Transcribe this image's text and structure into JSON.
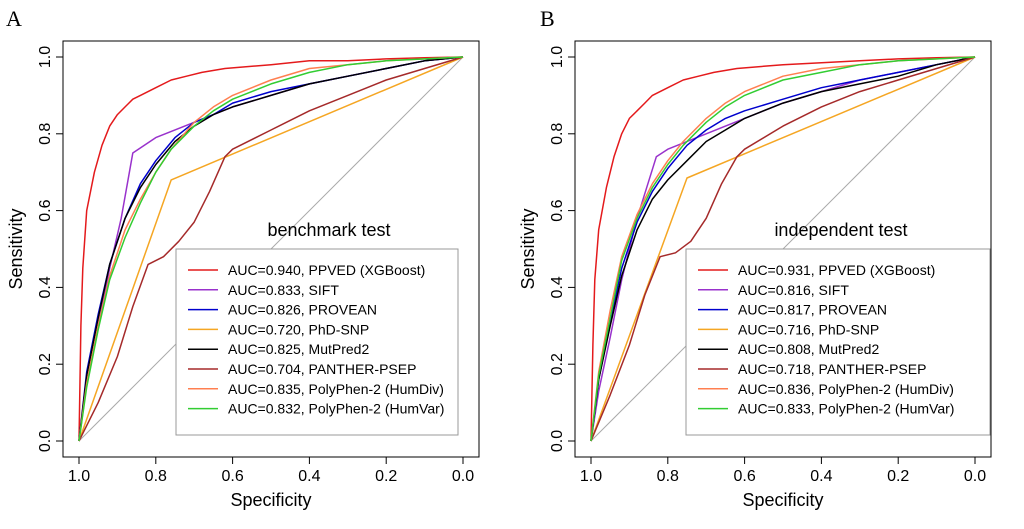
{
  "chart_data": [
    {
      "type": "line",
      "panel_label": "A",
      "annotation": "benchmark test",
      "xlabel": "Specificity",
      "ylabel": "Sensitivity",
      "xlim": [
        1.0,
        0.0
      ],
      "ylim": [
        0.0,
        1.0
      ],
      "x_ticks": [
        "1.0",
        "0.8",
        "0.6",
        "0.4",
        "0.2",
        "0.0"
      ],
      "y_ticks": [
        "0.0",
        "0.2",
        "0.4",
        "0.6",
        "0.8",
        "1.0"
      ],
      "legend_position": "bottom-right",
      "series": [
        {
          "name": "AUC=0.940, PPVED (XGBoost)",
          "color": "#e41a1c",
          "x": [
            1.0,
            0.995,
            0.99,
            0.98,
            0.96,
            0.94,
            0.92,
            0.9,
            0.88,
            0.86,
            0.84,
            0.8,
            0.76,
            0.72,
            0.68,
            0.62,
            0.5,
            0.4,
            0.3,
            0.2,
            0.1,
            0.0
          ],
          "y": [
            0.0,
            0.3,
            0.45,
            0.6,
            0.7,
            0.77,
            0.82,
            0.85,
            0.87,
            0.89,
            0.9,
            0.92,
            0.94,
            0.95,
            0.96,
            0.97,
            0.98,
            0.99,
            0.99,
            0.995,
            0.998,
            1.0
          ]
        },
        {
          "name": "AUC=0.833, SIFT",
          "color": "#9932cc",
          "x": [
            1.0,
            0.98,
            0.95,
            0.92,
            0.89,
            0.86,
            0.8,
            0.7,
            0.6,
            0.5,
            0.4,
            0.3,
            0.2,
            0.1,
            0.0
          ],
          "y": [
            0.0,
            0.15,
            0.3,
            0.45,
            0.58,
            0.75,
            0.79,
            0.83,
            0.87,
            0.9,
            0.93,
            0.95,
            0.97,
            0.99,
            1.0
          ]
        },
        {
          "name": "AUC=0.826, PROVEAN",
          "color": "#0000cd",
          "x": [
            1.0,
            0.98,
            0.95,
            0.92,
            0.88,
            0.84,
            0.8,
            0.75,
            0.7,
            0.65,
            0.6,
            0.5,
            0.4,
            0.3,
            0.2,
            0.1,
            0.0
          ],
          "y": [
            0.0,
            0.18,
            0.33,
            0.46,
            0.58,
            0.67,
            0.73,
            0.79,
            0.83,
            0.85,
            0.88,
            0.91,
            0.93,
            0.95,
            0.97,
            0.99,
            1.0
          ]
        },
        {
          "name": "AUC=0.720, PhD-SNP",
          "color": "#f5a623",
          "x": [
            1.0,
            0.76,
            0.0
          ],
          "y": [
            0.0,
            0.68,
            1.0
          ]
        },
        {
          "name": "AUC=0.825, MutPred2",
          "color": "#000000",
          "x": [
            1.0,
            0.98,
            0.95,
            0.92,
            0.88,
            0.84,
            0.8,
            0.75,
            0.7,
            0.65,
            0.6,
            0.5,
            0.4,
            0.3,
            0.2,
            0.1,
            0.0
          ],
          "y": [
            0.0,
            0.17,
            0.32,
            0.46,
            0.58,
            0.66,
            0.72,
            0.78,
            0.82,
            0.85,
            0.87,
            0.9,
            0.93,
            0.95,
            0.97,
            0.99,
            1.0
          ]
        },
        {
          "name": "AUC=0.704, PANTHER-PSEP",
          "color": "#a52a2a",
          "x": [
            1.0,
            0.95,
            0.9,
            0.86,
            0.82,
            0.78,
            0.74,
            0.7,
            0.66,
            0.62,
            0.6,
            0.5,
            0.4,
            0.3,
            0.2,
            0.1,
            0.0
          ],
          "y": [
            0.0,
            0.1,
            0.22,
            0.35,
            0.46,
            0.48,
            0.52,
            0.57,
            0.65,
            0.74,
            0.76,
            0.81,
            0.86,
            0.9,
            0.94,
            0.97,
            1.0
          ]
        },
        {
          "name": "AUC=0.835, PolyPhen-2 (HumDiv)",
          "color": "#ff7f50",
          "x": [
            1.0,
            0.98,
            0.95,
            0.92,
            0.88,
            0.84,
            0.8,
            0.76,
            0.7,
            0.65,
            0.6,
            0.5,
            0.4,
            0.3,
            0.2,
            0.1,
            0.0
          ],
          "y": [
            0.0,
            0.15,
            0.3,
            0.43,
            0.55,
            0.63,
            0.7,
            0.76,
            0.83,
            0.87,
            0.9,
            0.94,
            0.97,
            0.98,
            0.99,
            0.995,
            1.0
          ]
        },
        {
          "name": "AUC=0.832, PolyPhen-2 (HumVar)",
          "color": "#32cd32",
          "x": [
            1.0,
            0.98,
            0.95,
            0.92,
            0.88,
            0.84,
            0.8,
            0.76,
            0.7,
            0.65,
            0.6,
            0.5,
            0.4,
            0.3,
            0.2,
            0.1,
            0.0
          ],
          "y": [
            0.0,
            0.14,
            0.29,
            0.42,
            0.53,
            0.62,
            0.7,
            0.76,
            0.82,
            0.86,
            0.89,
            0.93,
            0.96,
            0.98,
            0.99,
            0.995,
            1.0
          ]
        }
      ]
    },
    {
      "type": "line",
      "panel_label": "B",
      "annotation": "independent test",
      "xlabel": "Specificity",
      "ylabel": "Sensitivity",
      "xlim": [
        1.0,
        0.0
      ],
      "ylim": [
        0.0,
        1.0
      ],
      "x_ticks": [
        "1.0",
        "0.8",
        "0.6",
        "0.4",
        "0.2",
        "0.0"
      ],
      "y_ticks": [
        "0.0",
        "0.2",
        "0.4",
        "0.6",
        "0.8",
        "1.0"
      ],
      "legend_position": "bottom-right",
      "series": [
        {
          "name": "AUC=0.931, PPVED (XGBoost)",
          "color": "#e41a1c",
          "x": [
            1.0,
            0.995,
            0.99,
            0.98,
            0.96,
            0.94,
            0.92,
            0.9,
            0.88,
            0.86,
            0.84,
            0.8,
            0.76,
            0.72,
            0.68,
            0.62,
            0.5,
            0.4,
            0.3,
            0.2,
            0.1,
            0.0
          ],
          "y": [
            0.0,
            0.25,
            0.42,
            0.55,
            0.66,
            0.74,
            0.8,
            0.84,
            0.86,
            0.88,
            0.9,
            0.92,
            0.94,
            0.95,
            0.96,
            0.97,
            0.98,
            0.985,
            0.99,
            0.995,
            0.998,
            1.0
          ]
        },
        {
          "name": "AUC=0.816, SIFT",
          "color": "#9932cc",
          "x": [
            1.0,
            0.98,
            0.95,
            0.92,
            0.88,
            0.83,
            0.8,
            0.7,
            0.6,
            0.5,
            0.4,
            0.3,
            0.2,
            0.1,
            0.0
          ],
          "y": [
            0.0,
            0.13,
            0.27,
            0.42,
            0.58,
            0.74,
            0.76,
            0.8,
            0.84,
            0.88,
            0.91,
            0.94,
            0.96,
            0.98,
            1.0
          ]
        },
        {
          "name": "AUC=0.817, PROVEAN",
          "color": "#0000cd",
          "x": [
            1.0,
            0.98,
            0.95,
            0.92,
            0.88,
            0.84,
            0.8,
            0.75,
            0.7,
            0.65,
            0.6,
            0.5,
            0.4,
            0.3,
            0.2,
            0.1,
            0.0
          ],
          "y": [
            0.0,
            0.16,
            0.31,
            0.45,
            0.57,
            0.65,
            0.71,
            0.77,
            0.81,
            0.84,
            0.86,
            0.89,
            0.92,
            0.94,
            0.96,
            0.98,
            1.0
          ]
        },
        {
          "name": "AUC=0.716, PhD-SNP",
          "color": "#f5a623",
          "x": [
            1.0,
            0.75,
            0.0
          ],
          "y": [
            0.0,
            0.685,
            1.0
          ]
        },
        {
          "name": "AUC=0.808, MutPred2",
          "color": "#000000",
          "x": [
            1.0,
            0.98,
            0.95,
            0.92,
            0.88,
            0.84,
            0.8,
            0.75,
            0.7,
            0.65,
            0.6,
            0.5,
            0.4,
            0.3,
            0.2,
            0.1,
            0.0
          ],
          "y": [
            0.0,
            0.16,
            0.3,
            0.43,
            0.55,
            0.63,
            0.68,
            0.73,
            0.78,
            0.81,
            0.84,
            0.88,
            0.91,
            0.93,
            0.95,
            0.98,
            1.0
          ]
        },
        {
          "name": "AUC=0.718, PANTHER-PSEP",
          "color": "#a52a2a",
          "x": [
            1.0,
            0.95,
            0.9,
            0.86,
            0.82,
            0.78,
            0.74,
            0.7,
            0.66,
            0.62,
            0.6,
            0.5,
            0.4,
            0.3,
            0.2,
            0.1,
            0.0
          ],
          "y": [
            0.0,
            0.12,
            0.25,
            0.38,
            0.48,
            0.49,
            0.52,
            0.58,
            0.67,
            0.74,
            0.76,
            0.82,
            0.87,
            0.91,
            0.94,
            0.97,
            1.0
          ]
        },
        {
          "name": "AUC=0.836, PolyPhen-2 (HumDiv)",
          "color": "#ff7f50",
          "x": [
            1.0,
            0.98,
            0.95,
            0.92,
            0.88,
            0.84,
            0.8,
            0.76,
            0.7,
            0.65,
            0.6,
            0.5,
            0.4,
            0.3,
            0.2,
            0.1,
            0.0
          ],
          "y": [
            0.0,
            0.18,
            0.34,
            0.48,
            0.59,
            0.67,
            0.73,
            0.78,
            0.84,
            0.88,
            0.91,
            0.95,
            0.97,
            0.98,
            0.99,
            0.995,
            1.0
          ]
        },
        {
          "name": "AUC=0.833, PolyPhen-2 (HumVar)",
          "color": "#32cd32",
          "x": [
            1.0,
            0.98,
            0.95,
            0.92,
            0.88,
            0.84,
            0.8,
            0.76,
            0.7,
            0.65,
            0.6,
            0.5,
            0.4,
            0.3,
            0.2,
            0.1,
            0.0
          ],
          "y": [
            0.0,
            0.17,
            0.32,
            0.47,
            0.58,
            0.66,
            0.72,
            0.77,
            0.83,
            0.87,
            0.9,
            0.94,
            0.96,
            0.98,
            0.99,
            0.995,
            1.0
          ]
        }
      ]
    }
  ]
}
